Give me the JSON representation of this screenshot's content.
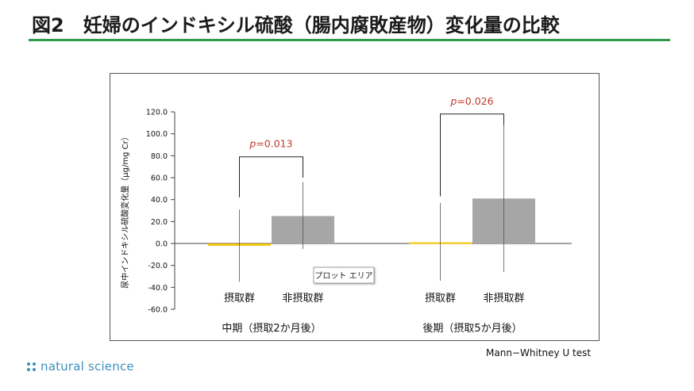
{
  "page": {
    "title": "図2　妊婦のインドキシル硫酸（腸内腐敗産物）変化量の比較",
    "test_note": "Mann−Whitney U test",
    "brand": "natural science",
    "accent_color": "#2e9a4c",
    "brand_color": "#3d8fbf"
  },
  "chart_data": {
    "type": "bar",
    "ylabel": "尿中インドキシル硫酸変化量（μg/mg Cr）",
    "ylim": [
      -60,
      120
    ],
    "yticks": [
      "120.0",
      "100.0",
      "80.0",
      "60.0",
      "40.0",
      "20.0",
      "0.0",
      "-20.0",
      "-40.0",
      "-60.0"
    ],
    "ytick_values": [
      120,
      100,
      80,
      60,
      40,
      20,
      0,
      -20,
      -40,
      -60
    ],
    "groups": [
      {
        "label": "中期（摂取2か月後）",
        "p_label": "p",
        "p_value": "=0.013",
        "bars": [
          {
            "label": "摂取群",
            "value": -2,
            "err_low": -35,
            "err_high": 31,
            "color": "#f2c200"
          },
          {
            "label": "非摂取群",
            "value": 25,
            "err_low": -5,
            "err_high": 56,
            "color": "#a6a6a6"
          }
        ]
      },
      {
        "label": "後期（摂取5か月後）",
        "p_label": "p",
        "p_value": "=0.026",
        "bars": [
          {
            "label": "摂取群",
            "value": 1,
            "err_low": -34,
            "err_high": 37,
            "color": "#f2c200"
          },
          {
            "label": "非摂取群",
            "value": 41,
            "err_low": -26,
            "err_high": 108,
            "color": "#a6a6a6"
          }
        ]
      }
    ],
    "tooltip": "プロット エリア",
    "grid": false,
    "legend": "none"
  }
}
